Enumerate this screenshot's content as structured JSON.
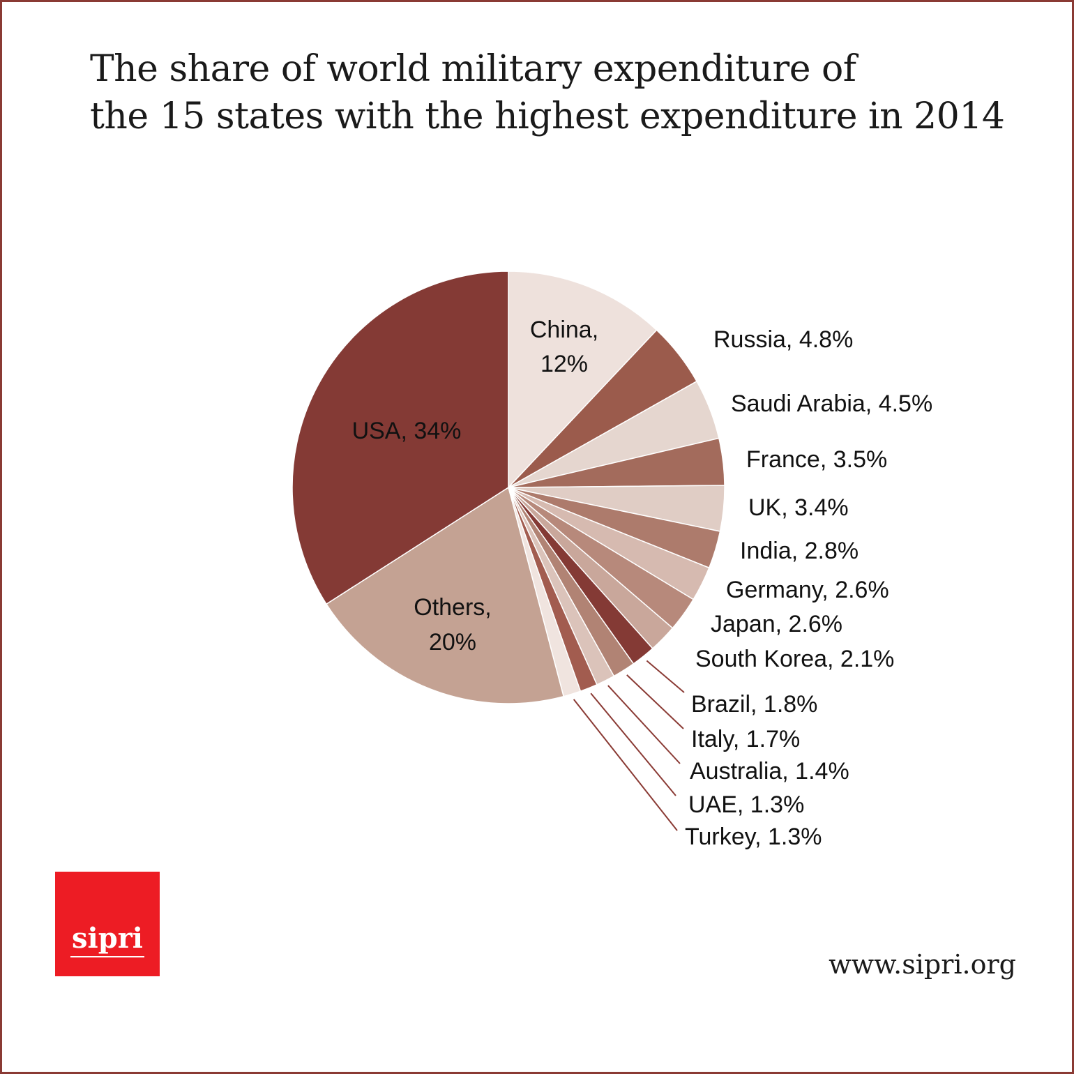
{
  "title_lines": [
    "The share of world military expenditure of",
    "the 15 states with the highest expenditure in 2014"
  ],
  "logo_text": "sipri",
  "url": "www.sipri.org",
  "chart_data": {
    "type": "pie",
    "title": "The share of world military expenditure of the 15 states with the highest expenditure in 2014",
    "start_angle_deg": 0,
    "direction": "clockwise",
    "slices": [
      {
        "label": "China, 12%",
        "name": "China",
        "value": 12,
        "color": "#eee1dc",
        "label_mode": "inside",
        "lines": [
          "China,",
          "12%"
        ]
      },
      {
        "label": "Russia, 4.8%",
        "name": "Russia",
        "value": 4.8,
        "color": "#9b5b4c",
        "label_mode": "outside"
      },
      {
        "label": "Saudi Arabia, 4.5%",
        "name": "Saudi Arabia",
        "value": 4.5,
        "color": "#e5d6cf",
        "label_mode": "outside"
      },
      {
        "label": "France, 3.5%",
        "name": "France",
        "value": 3.5,
        "color": "#a36b5c",
        "label_mode": "outside"
      },
      {
        "label": "UK, 3.4%",
        "name": "UK",
        "value": 3.4,
        "color": "#e0cdc5",
        "label_mode": "outside"
      },
      {
        "label": "India, 2.8%",
        "name": "India",
        "value": 2.8,
        "color": "#ad7b6c",
        "label_mode": "outside"
      },
      {
        "label": "Germany, 2.6%",
        "name": "Germany",
        "value": 2.6,
        "color": "#d6bab0",
        "label_mode": "outside"
      },
      {
        "label": "Japan, 2.6%",
        "name": "Japan",
        "value": 2.6,
        "color": "#b7897b",
        "label_mode": "outside"
      },
      {
        "label": "South Korea, 2.1%",
        "name": "South Korea",
        "value": 2.1,
        "color": "#c9a79b",
        "label_mode": "outside"
      },
      {
        "label": "Brazil, 1.8%",
        "name": "Brazil",
        "value": 1.8,
        "color": "#843a35",
        "label_mode": "leader"
      },
      {
        "label": "Italy, 1.7%",
        "name": "Italy",
        "value": 1.7,
        "color": "#b18374",
        "label_mode": "leader"
      },
      {
        "label": "Australia, 1.4%",
        "name": "Australia",
        "value": 1.4,
        "color": "#dbc3ba",
        "label_mode": "leader"
      },
      {
        "label": "UAE, 1.3%",
        "name": "UAE",
        "value": 1.3,
        "color": "#a25c4f",
        "label_mode": "leader"
      },
      {
        "label": "Turkey, 1.3%",
        "name": "Turkey",
        "value": 1.3,
        "color": "#f0e4df",
        "label_mode": "leader"
      },
      {
        "label": "Others, 20%",
        "name": "Others",
        "value": 20,
        "color": "#c4a293",
        "label_mode": "inside",
        "lines": [
          "Others,",
          "20%"
        ]
      },
      {
        "label": "USA, 34%",
        "name": "USA",
        "value": 34,
        "color": "#843a35",
        "label_mode": "inside",
        "lines": [
          "USA, 34%"
        ]
      }
    ],
    "leader_color": "#8a3a34",
    "legend": "none"
  }
}
